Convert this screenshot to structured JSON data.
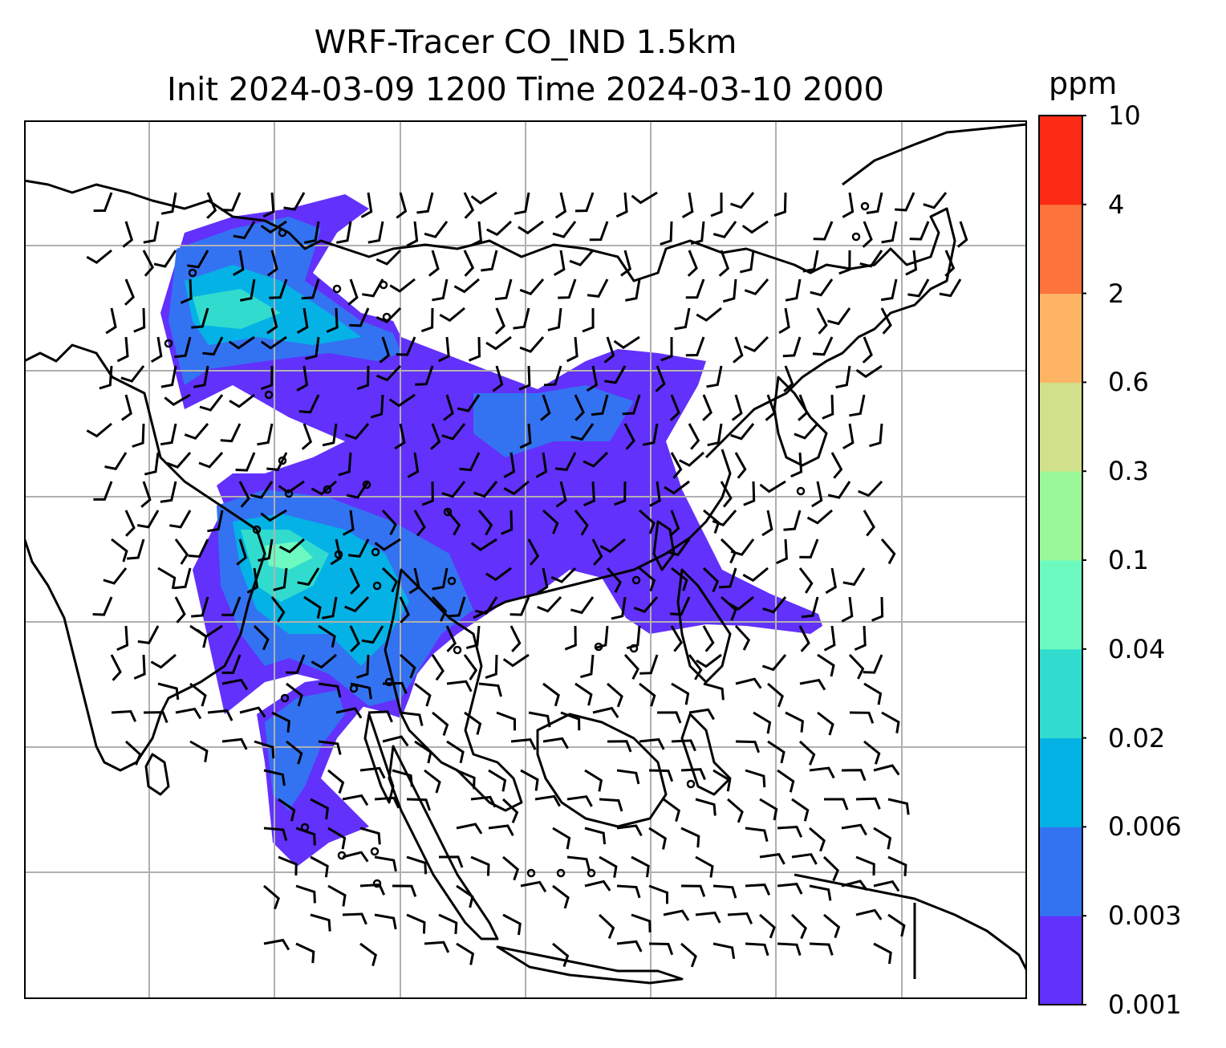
{
  "title_line1": "WRF-Tracer CO_IND 1.5km",
  "title_line2": "Init 2024-03-09 1200 Time 2024-03-10 2000",
  "colorbar": {
    "unit": "ppm",
    "levels": [
      "0.001",
      "0.003",
      "0.006",
      "0.02",
      "0.04",
      "0.1",
      "0.3",
      "0.6",
      "2",
      "4",
      "10"
    ],
    "colors": [
      "#6231fb",
      "#3373f2",
      "#04b2e6",
      "#31dccf",
      "#6cfac0",
      "#9bf898",
      "#d1e08a",
      "#fdb464",
      "#fc733b",
      "#fc2b15"
    ]
  },
  "map": {
    "field_colors": {
      "low": "#6231fb",
      "mid": "#3373f2",
      "high": "#04b2e6",
      "peak": "#31dccf",
      "max": "#6cfac0"
    },
    "gridline_color": "#b0b0b0",
    "coastline_color": "#000000"
  }
}
